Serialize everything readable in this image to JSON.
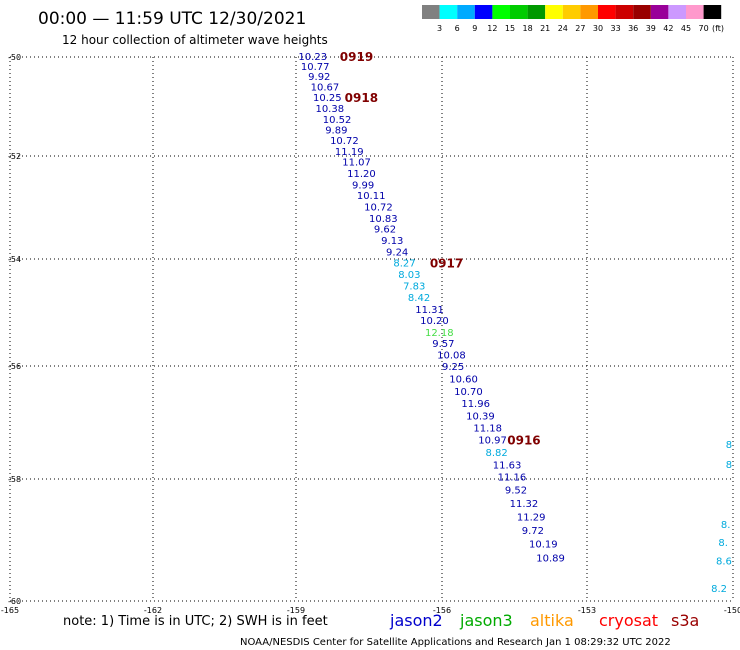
{
  "title": "00:00 — 11:59 UTC 12/30/2021",
  "subtitle": "12 hour collection of altimeter wave heights",
  "legend": {
    "unit": "(ft)",
    "colors": [
      "#808080",
      "#00ffff",
      "#00aaff",
      "#0000ff",
      "#00ff00",
      "#00cc00",
      "#009900",
      "#ffff00",
      "#ffcc00",
      "#ff9900",
      "#ff0000",
      "#cc0000",
      "#990000",
      "#990099",
      "#cc99ff",
      "#ff99cc",
      "#000000"
    ],
    "labels": [
      "3",
      "6",
      "9",
      "12",
      "15",
      "18",
      "21",
      "24",
      "27",
      "30",
      "33",
      "36",
      "39",
      "42",
      "45",
      "70"
    ]
  },
  "note": "note:  1) Time is in UTC; 2) SWH is in feet",
  "satellites": [
    {
      "name": "jason2",
      "color": "#0000cc"
    },
    {
      "name": "jason3",
      "color": "#00aa00"
    },
    {
      "name": "altika",
      "color": "#ff9900"
    },
    {
      "name": "cryosat",
      "color": "#ff0000"
    },
    {
      "name": "s3a",
      "color": "#990000"
    }
  ],
  "credit": "NOAA/NESDIS Center for Satellite Applications and Research    Jan  1 08:29:32 UTC 2022",
  "chart_data": {
    "type": "scatter",
    "xlim": [
      -165,
      -150
    ],
    "ylim": [
      -60,
      -50
    ],
    "x_ticks": [
      "-165",
      "-162",
      "-159",
      "-156",
      "-153",
      "-150"
    ],
    "y_ticks": [
      "-50",
      "-52",
      "-54",
      "-56",
      "-58",
      "-60"
    ],
    "grid": true,
    "observations": [
      {
        "x": -158.95,
        "y": -50.0,
        "value": "10.23",
        "color": "#0000aa"
      },
      {
        "x": -158.9,
        "y": -50.2,
        "value": "10.77",
        "color": "#0000aa"
      },
      {
        "x": -158.75,
        "y": -50.4,
        "value": "9.92",
        "color": "#0000aa"
      },
      {
        "x": -158.7,
        "y": -50.62,
        "value": "10.67",
        "color": "#0000aa"
      },
      {
        "x": -158.65,
        "y": -50.83,
        "value": "10.25",
        "color": "#0000aa"
      },
      {
        "x": -158.6,
        "y": -51.05,
        "value": "10.38",
        "color": "#0000aa"
      },
      {
        "x": -158.45,
        "y": -51.27,
        "value": "10.52",
        "color": "#0000aa"
      },
      {
        "x": -158.4,
        "y": -51.48,
        "value": "9.89",
        "color": "#0000aa"
      },
      {
        "x": -158.3,
        "y": -51.7,
        "value": "10.72",
        "color": "#0000aa"
      },
      {
        "x": -158.2,
        "y": -51.92,
        "value": "11.19",
        "color": "#0000aa"
      },
      {
        "x": -158.05,
        "y": -52.13,
        "value": "11.07",
        "color": "#0000aa"
      },
      {
        "x": -157.95,
        "y": -52.35,
        "value": "11.20",
        "color": "#0000aa"
      },
      {
        "x": -157.85,
        "y": -52.57,
        "value": "9.99",
        "color": "#0000aa"
      },
      {
        "x": -157.75,
        "y": -52.78,
        "value": "10.11",
        "color": "#0000aa"
      },
      {
        "x": -157.6,
        "y": -53.0,
        "value": "10.72",
        "color": "#0000aa"
      },
      {
        "x": -157.5,
        "y": -53.22,
        "value": "10.83",
        "color": "#0000aa"
      },
      {
        "x": -157.4,
        "y": -53.43,
        "value": "9.62",
        "color": "#0000aa"
      },
      {
        "x": -157.25,
        "y": -53.65,
        "value": "9.13",
        "color": "#0000aa"
      },
      {
        "x": -157.15,
        "y": -53.87,
        "value": "9.24",
        "color": "#0000aa"
      },
      {
        "x": -157.0,
        "y": -54.08,
        "value": "8.27",
        "color": "#00aadd"
      },
      {
        "x": -156.9,
        "y": -54.3,
        "value": "8.03",
        "color": "#00aadd"
      },
      {
        "x": -156.8,
        "y": -54.51,
        "value": "7.83",
        "color": "#00aadd"
      },
      {
        "x": -156.7,
        "y": -54.73,
        "value": "8.42",
        "color": "#00aadd"
      },
      {
        "x": -156.55,
        "y": -54.95,
        "value": "11.31",
        "color": "#0000aa"
      },
      {
        "x": -156.45,
        "y": -55.16,
        "value": "10.20",
        "color": "#0000aa"
      },
      {
        "x": -156.35,
        "y": -55.38,
        "value": "12.18",
        "color": "#44dd44"
      },
      {
        "x": -156.2,
        "y": -55.59,
        "value": "9.57",
        "color": "#0000aa"
      },
      {
        "x": -156.1,
        "y": -55.8,
        "value": "10.08",
        "color": "#0000aa"
      },
      {
        "x": -156.0,
        "y": -56.02,
        "value": "9.25",
        "color": "#0000aa"
      },
      {
        "x": -155.85,
        "y": -56.24,
        "value": "10.60",
        "color": "#0000aa"
      },
      {
        "x": -155.75,
        "y": -56.46,
        "value": "10.70",
        "color": "#0000aa"
      },
      {
        "x": -155.6,
        "y": -56.67,
        "value": "11.96",
        "color": "#0000aa"
      },
      {
        "x": -155.5,
        "y": -56.89,
        "value": "10.39",
        "color": "#0000aa"
      },
      {
        "x": -155.35,
        "y": -57.11,
        "value": "11.18",
        "color": "#0000aa"
      },
      {
        "x": -155.25,
        "y": -57.32,
        "value": "10.97",
        "color": "#0000aa"
      },
      {
        "x": -155.1,
        "y": -57.54,
        "value": "8.82",
        "color": "#00aadd"
      },
      {
        "x": -154.95,
        "y": -57.76,
        "value": "11.63",
        "color": "#0000aa"
      },
      {
        "x": -154.85,
        "y": -57.97,
        "value": "11.16",
        "color": "#0000aa"
      },
      {
        "x": -154.7,
        "y": -58.19,
        "value": "9.52",
        "color": "#0000aa"
      },
      {
        "x": -154.6,
        "y": -58.41,
        "value": "11.32",
        "color": "#0000aa"
      },
      {
        "x": -154.45,
        "y": -58.63,
        "value": "11.29",
        "color": "#0000aa"
      },
      {
        "x": -154.35,
        "y": -58.85,
        "value": "9.72",
        "color": "#0000aa"
      },
      {
        "x": -154.2,
        "y": -59.07,
        "value": "10.19",
        "color": "#0000aa"
      },
      {
        "x": -154.05,
        "y": -59.3,
        "value": "10.89",
        "color": "#0000aa"
      },
      {
        "x": -150.15,
        "y": -57.4,
        "value": "8",
        "color": "#00aadd"
      },
      {
        "x": -150.15,
        "y": -57.75,
        "value": "8",
        "color": "#00aadd"
      },
      {
        "x": -150.25,
        "y": -58.75,
        "value": "8.",
        "color": "#00aadd"
      },
      {
        "x": -150.3,
        "y": -59.05,
        "value": "8.",
        "color": "#00aadd"
      },
      {
        "x": -150.35,
        "y": -59.35,
        "value": "8.6",
        "color": "#00aadd"
      },
      {
        "x": -150.45,
        "y": -59.8,
        "value": "8.2",
        "color": "#00aadd"
      }
    ],
    "pass_labels": [
      {
        "x": -158.1,
        "y": -50.0,
        "text": "0919"
      },
      {
        "x": -158.0,
        "y": -50.83,
        "text": "0918"
      },
      {
        "x": -156.25,
        "y": -54.08,
        "text": "0917"
      },
      {
        "x": -154.65,
        "y": -57.32,
        "text": "0916"
      }
    ]
  }
}
